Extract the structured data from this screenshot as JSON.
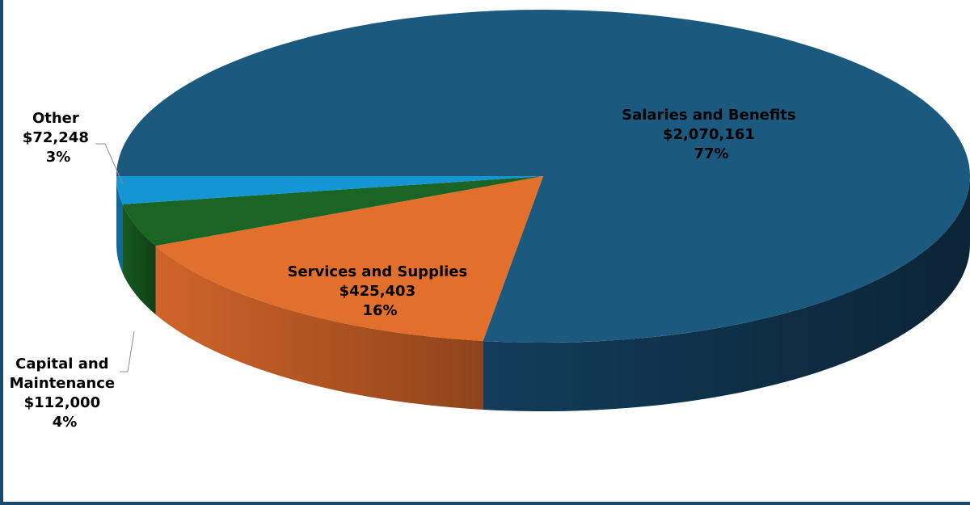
{
  "chart_data": {
    "type": "pie",
    "style": "3d",
    "title": "",
    "slices": [
      {
        "label": "Salaries and Benefits",
        "value": 2070161,
        "value_text": "$2,070,161",
        "percent_text": "77%",
        "color": "#1b5a7e",
        "side_color": "#0f3550"
      },
      {
        "label": "Services and Supplies",
        "value": 425403,
        "value_text": "$425,403",
        "percent_text": "16%",
        "color": "#e36f2c",
        "side_color": "#a24e1f"
      },
      {
        "label": "Capital and Maintenance",
        "value": 112000,
        "value_text": "$112,000",
        "percent_text": "4%",
        "color": "#1a6424",
        "side_color": "#0f4016"
      },
      {
        "label": "Other",
        "value": 72248,
        "value_text": "$72,248",
        "percent_text": "3%",
        "color": "#1596d4",
        "side_color": "#0e6a98"
      }
    ],
    "data_labels": [
      {
        "lines": [
          "Salaries and Benefits",
          "$2,070,161",
          "77%"
        ]
      },
      {
        "lines": [
          "Services and Supplies",
          "$425,403",
          "16%"
        ]
      },
      {
        "lines": [
          "Capital and",
          "Maintenance",
          "$112,000",
          "4%"
        ]
      },
      {
        "lines": [
          "Other",
          "$72,248",
          "3%"
        ]
      }
    ]
  }
}
